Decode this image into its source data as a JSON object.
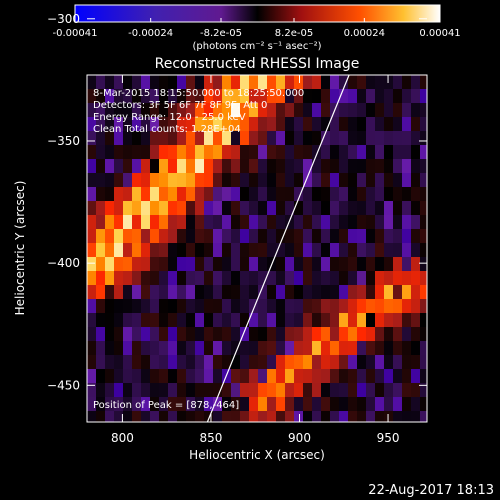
{
  "colorbar": {
    "tick_labels": [
      "-0.00041",
      "-0.00024",
      "-8.2e-05",
      "8.2e-05",
      "0.00024",
      "0.00041"
    ],
    "tick_values": [
      -0.00041,
      -0.00024,
      -8.2e-05,
      8.2e-05,
      0.00024,
      0.00041
    ],
    "range": [
      -0.00041,
      0.00041
    ],
    "units_label": "(photons cm⁻² s⁻¹ asec⁻²)"
  },
  "chart_data": {
    "type": "heatmap",
    "title": "Reconstructed RHESSI Image",
    "xlabel": "Heliocentric X (arcsec)",
    "ylabel": "Heliocentric Y (arcsec)",
    "xlim": [
      780,
      972
    ],
    "ylim": [
      -465,
      -323
    ],
    "x_ticks": [
      800,
      850,
      900,
      950
    ],
    "y_ticks": [
      -300,
      -350,
      -400,
      -450
    ],
    "x_tick_labels": [
      "800",
      "850",
      "900",
      "950"
    ],
    "y_tick_labels": [
      "−300",
      "−350",
      "−400",
      "−450"
    ],
    "colormap": [
      "#0000ff",
      "#3c00a0",
      "#6a1ea8",
      "#000000",
      "#9b1c1c",
      "#ff2800",
      "#ff8c00",
      "#ffd040",
      "#ffffff"
    ],
    "annotations": [
      "8-Mar-2015 18:15:50.000 to 18:25:50.000",
      "Detectors: 3F 5F 6F 7F 8F 9F, Att 0",
      "Energy Range: 12.0 - 25.0 keV",
      "Clean     Total counts: 1.28E+04"
    ],
    "peak_label": "Position of Peak = [878,-464]",
    "limb_line": [
      [
        848,
        -465
      ],
      [
        928,
        -323
      ]
    ],
    "bright_band": [
      [
        785,
        -400
      ],
      [
        830,
        -365
      ],
      [
        870,
        -330
      ],
      [
        905,
        -310
      ],
      [
        930,
        -300
      ]
    ],
    "lower_band": [
      [
        880,
        -455
      ],
      [
        920,
        -430
      ],
      [
        960,
        -410
      ]
    ]
  },
  "footer": {
    "date": "22-Aug-2017 18:13"
  }
}
